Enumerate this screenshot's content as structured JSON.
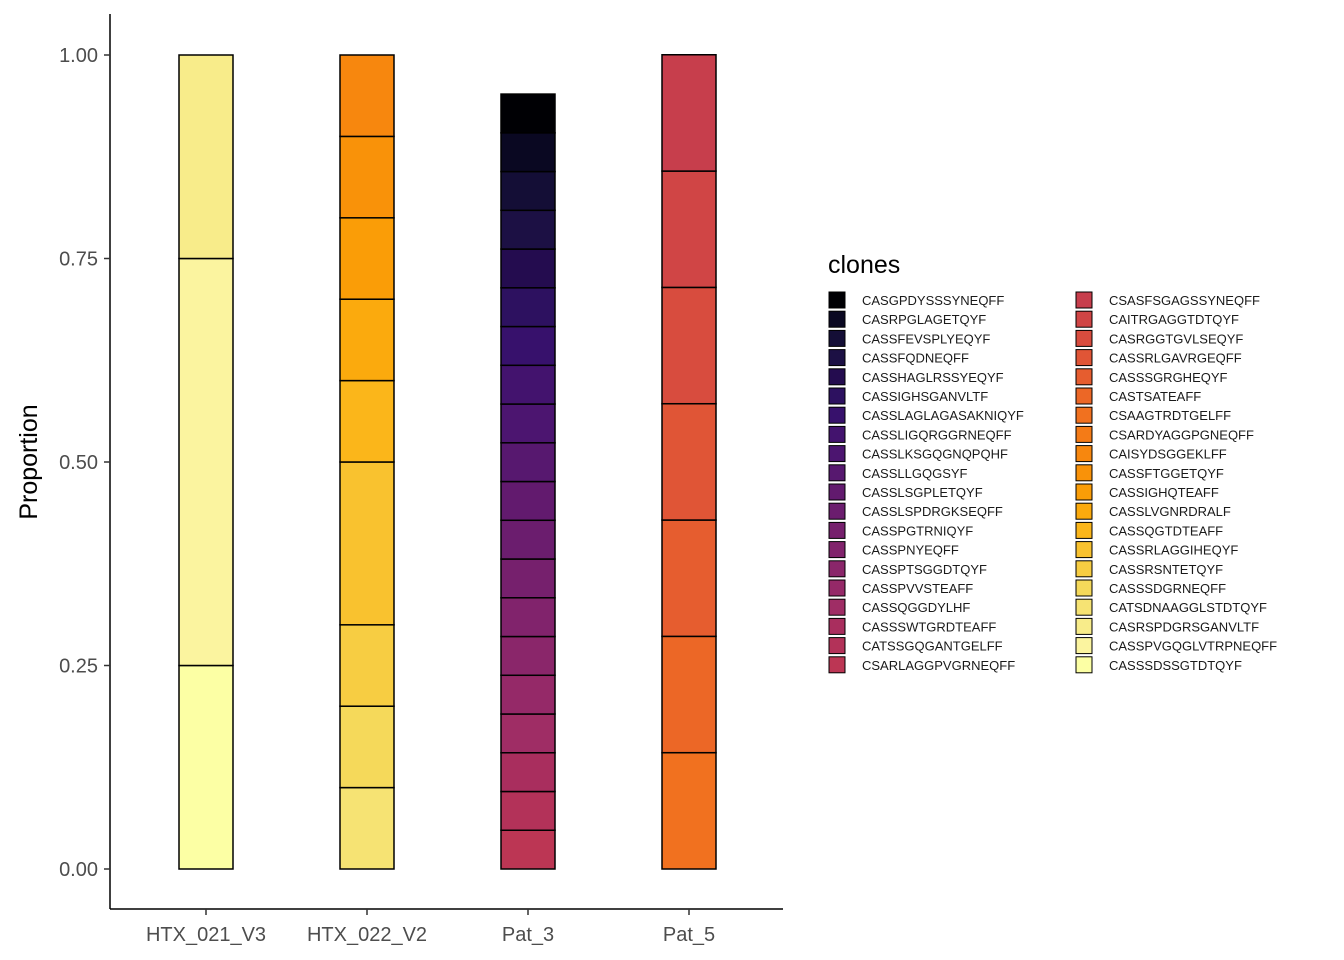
{
  "chart_data": {
    "type": "bar",
    "stacked": true,
    "categories": [
      "HTX_021_V3",
      "HTX_022_V2",
      "Pat_3",
      "Pat_5"
    ],
    "ylabel": "Proportion",
    "xlabel": "",
    "ylim": [
      0,
      1
    ],
    "yticks": [
      "0.00",
      "0.25",
      "0.50",
      "0.75",
      "1.00"
    ],
    "yticks_values": [
      0,
      0.25,
      0.5,
      0.75,
      1
    ],
    "grid": false,
    "legend": {
      "title": "clones",
      "position": "right",
      "columns": 2
    },
    "clones": [
      {
        "name": "CASGPDYSSSYNEQFF",
        "color": "#000004"
      },
      {
        "name": "CASRPGLAGETQYF",
        "color": "#0a0822"
      },
      {
        "name": "CASSFEVSPLYEQYF",
        "color": "#140e36"
      },
      {
        "name": "CASSFQDNEQFF",
        "color": "#1c1044"
      },
      {
        "name": "CASSHAGLRSSYEQYF",
        "color": "#240c4f"
      },
      {
        "name": "CASSIGHSGANVLTF",
        "color": "#2d1160"
      },
      {
        "name": "CASSLAGLAGASAKNIQYF",
        "color": "#37116c"
      },
      {
        "name": "CASSLIGQRGGRNEQFF",
        "color": "#43136e"
      },
      {
        "name": "CASSLKSGQGNQPQHF",
        "color": "#4c1570"
      },
      {
        "name": "CASSLLGQGSYF",
        "color": "#57186f"
      },
      {
        "name": "CASSLSGPLETQYF",
        "color": "#621a6e"
      },
      {
        "name": "CASSLSPDRGKSEQFF",
        "color": "#6b1d6e"
      },
      {
        "name": "CASSPGTRNIQYF",
        "color": "#76206d"
      },
      {
        "name": "CASSPNYEQFF",
        "color": "#81236c"
      },
      {
        "name": "CASSPTSGGDTQYF",
        "color": "#8a266a"
      },
      {
        "name": "CASSPVVSTEAFF",
        "color": "#952968"
      },
      {
        "name": "CASSQGGDYLHF",
        "color": "#9f2d65"
      },
      {
        "name": "CASSSWTGRDTEAFF",
        "color": "#a92e5e"
      },
      {
        "name": "CATSSGQGANTGELFF",
        "color": "#b33259"
      },
      {
        "name": "CSARLAGGPVGRNEQFF",
        "color": "#bc3654"
      },
      {
        "name": "CSASFSGAGSSYNEQFF",
        "color": "#c73e4c"
      },
      {
        "name": "CAITRGAGGTDTQYF",
        "color": "#d04545"
      },
      {
        "name": "CASRGGTGVLSEQYF",
        "color": "#d84c3e"
      },
      {
        "name": "CASSRLGAVRGEQFF",
        "color": "#e05536"
      },
      {
        "name": "CASSSGRGHEQYF",
        "color": "#e65d2f"
      },
      {
        "name": "CASTSATEAFF",
        "color": "#ec6726"
      },
      {
        "name": "CSAAGTRDTGELFF",
        "color": "#f1711f"
      },
      {
        "name": "CSARDYAGGPGNEQFF",
        "color": "#f47b17"
      },
      {
        "name": "CAISYDSGGEKLFF",
        "color": "#f7870e"
      },
      {
        "name": "CASSFTGGETQYF",
        "color": "#f99209"
      },
      {
        "name": "CASSIGHQTEAFF",
        "color": "#fa9d07"
      },
      {
        "name": "CASSLVGNRDRALF",
        "color": "#fbaa0d"
      },
      {
        "name": "CASSQGTDTEAFF",
        "color": "#fbb61a"
      },
      {
        "name": "CASSRLAGGIHEQYF",
        "color": "#f9c22f"
      },
      {
        "name": "CASSRSNTETQYF",
        "color": "#f7cd42"
      },
      {
        "name": "CASSSDGRNEQFF",
        "color": "#f5d95a"
      },
      {
        "name": "CATSDNAAGGLSTDTQYF",
        "color": "#f6e373"
      },
      {
        "name": "CASRSPDGRSGANVLTF",
        "color": "#f8ec8a"
      },
      {
        "name": "CASSPVGQGLVTRPNEQFF",
        "color": "#fbf49f"
      },
      {
        "name": "CASSSDSSGTDTQYF",
        "color": "#fcffa4"
      }
    ],
    "series": [
      {
        "category": "HTX_021_V3",
        "segments": [
          {
            "clone": "CASSSDSSGTDTQYF",
            "value": 0.25
          },
          {
            "clone": "CASSPVGQGLVTRPNEQFF",
            "value": 0.5
          },
          {
            "clone": "CASRSPDGRSGANVLTF",
            "value": 0.25
          }
        ]
      },
      {
        "category": "HTX_022_V2",
        "segments": [
          {
            "clone": "CATSDNAAGGLSTDTQYF",
            "value": 0.1
          },
          {
            "clone": "CASSSDGRNEQFF",
            "value": 0.1
          },
          {
            "clone": "CASSRSNTETQYF",
            "value": 0.1
          },
          {
            "clone": "CASSRLAGGIHEQYF",
            "value": 0.2
          },
          {
            "clone": "CASSQGTDTEAFF",
            "value": 0.1
          },
          {
            "clone": "CASSLVGNRDRALF",
            "value": 0.1
          },
          {
            "clone": "CASSIGHQTEAFF",
            "value": 0.1
          },
          {
            "clone": "CASSFTGGETQYF",
            "value": 0.1
          },
          {
            "clone": "CAISYDSGGEKLFF",
            "value": 0.1
          }
        ]
      },
      {
        "category": "Pat_3",
        "segments": [
          {
            "clone": "CSARLAGGPVGRNEQFF",
            "value": 0.0476
          },
          {
            "clone": "CATSSGQGANTGELFF",
            "value": 0.0476
          },
          {
            "clone": "CASSSWTGRDTEAFF",
            "value": 0.0476
          },
          {
            "clone": "CASSQGGDYLHF",
            "value": 0.0476
          },
          {
            "clone": "CASSPVVSTEAFF",
            "value": 0.0476
          },
          {
            "clone": "CASSPTSGGDTQYF",
            "value": 0.0476
          },
          {
            "clone": "CASSPNYEQFF",
            "value": 0.0476
          },
          {
            "clone": "CASSPGTRNIQYF",
            "value": 0.0476
          },
          {
            "clone": "CASSLSPDRGKSEQFF",
            "value": 0.0476
          },
          {
            "clone": "CASSLSGPLETQYF",
            "value": 0.0476
          },
          {
            "clone": "CASSLLGQGSYF",
            "value": 0.0476
          },
          {
            "clone": "CASSLKSGQGNQPQHF",
            "value": 0.0476
          },
          {
            "clone": "CASSLIGQRGGRNEQFF",
            "value": 0.0476
          },
          {
            "clone": "CASSLAGLAGASAKNIQYF",
            "value": 0.0476
          },
          {
            "clone": "CASSIGHSGANVLTF",
            "value": 0.0476
          },
          {
            "clone": "CASSHAGLRSSYEQYF",
            "value": 0.0476
          },
          {
            "clone": "CASSFQDNEQFF",
            "value": 0.0476
          },
          {
            "clone": "CASSFEVSPLYEQYF",
            "value": 0.0476
          },
          {
            "clone": "CASRPGLAGETQYF",
            "value": 0.0476
          },
          {
            "clone": "CASGPDYSSSYNEQFF",
            "value": 0.0476
          }
        ]
      },
      {
        "category": "Pat_5",
        "segments": [
          {
            "clone": "CSAAGTRDTGELFF",
            "value": 0.1429
          },
          {
            "clone": "CASTSATEAFF",
            "value": 0.1429
          },
          {
            "clone": "CASSSGRGHEQYF",
            "value": 0.1429
          },
          {
            "clone": "CASSRLGAVRGEQFF",
            "value": 0.1429
          },
          {
            "clone": "CASRGGTGVLSEQYF",
            "value": 0.1429
          },
          {
            "clone": "CAITRGAGGTDTQYF",
            "value": 0.1429
          },
          {
            "clone": "CSASFSGAGSSYNEQFF",
            "value": 0.1429
          }
        ]
      }
    ]
  }
}
